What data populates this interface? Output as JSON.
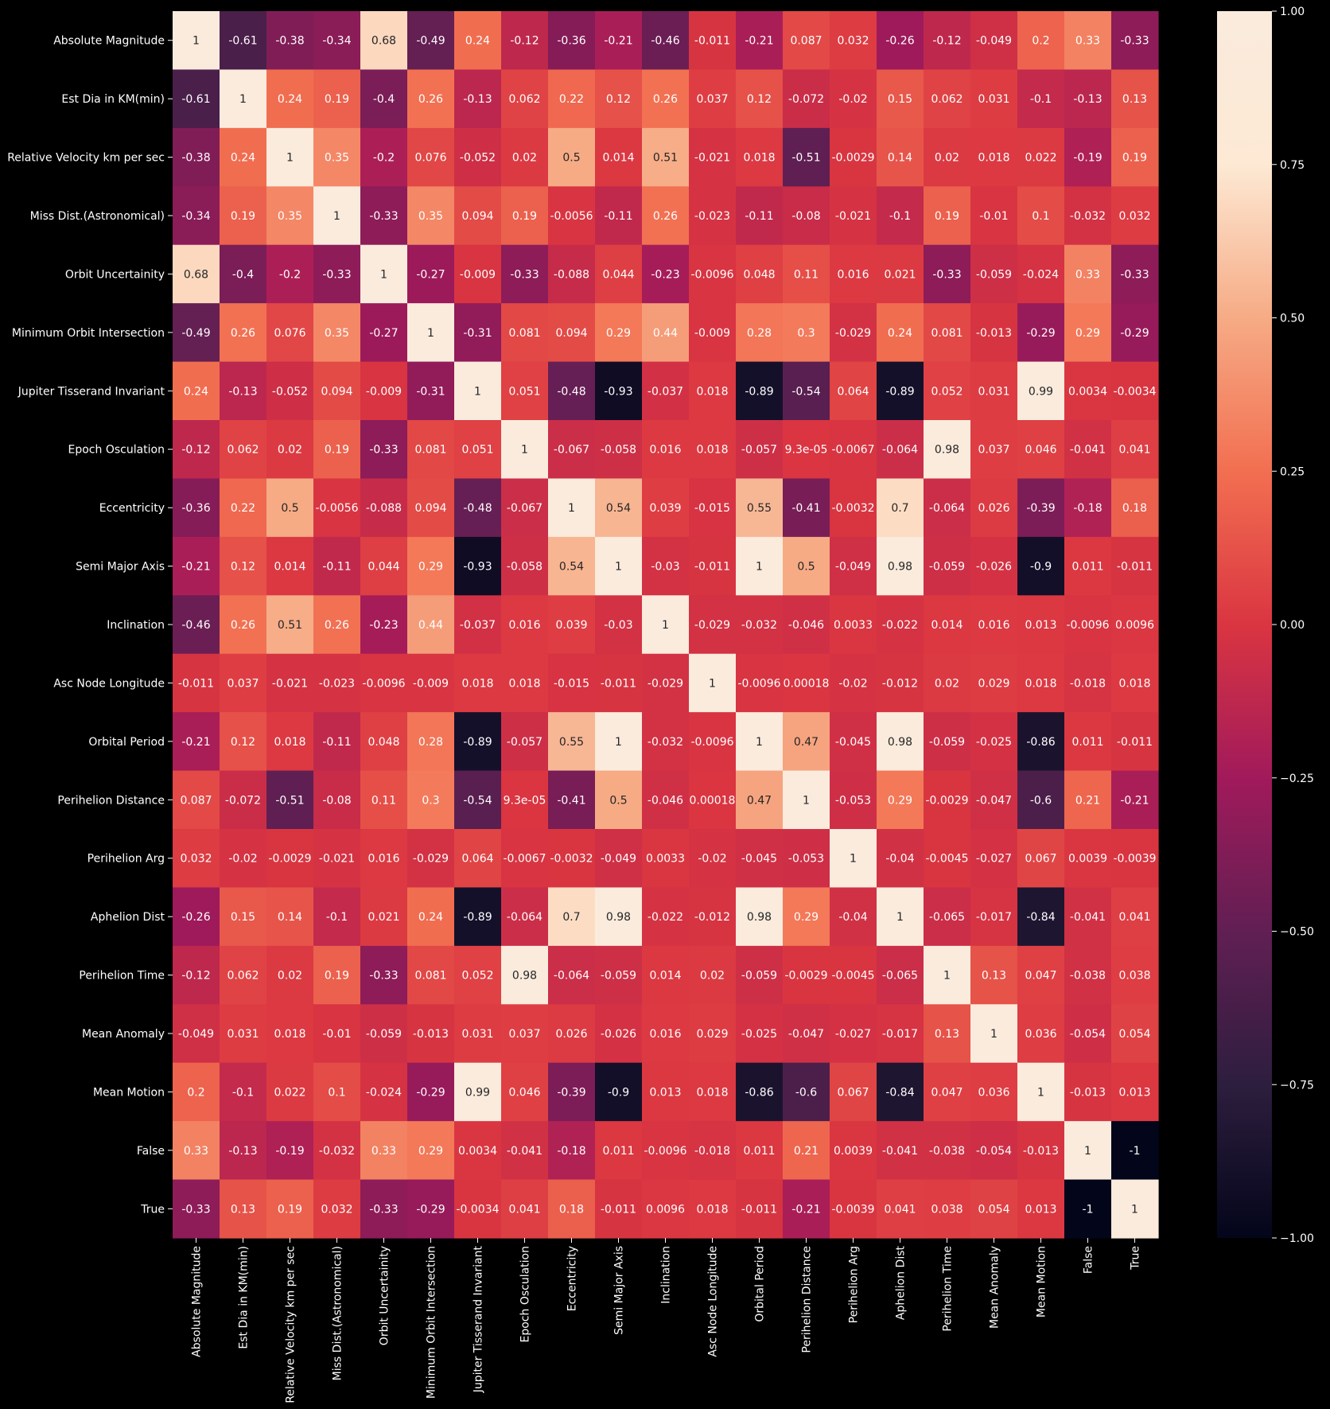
{
  "chart_data": {
    "type": "heatmap",
    "title": "",
    "xlabel": "",
    "ylabel": "",
    "variables": [
      "Absolute Magnitude",
      "Est Dia in KM(min)",
      "Relative Velocity km per sec",
      "Miss Dist.(Astronomical)",
      "Orbit Uncertainity",
      "Minimum Orbit Intersection",
      "Jupiter Tisserand Invariant",
      "Epoch Osculation",
      "Eccentricity",
      "Semi Major Axis",
      "Inclination",
      "Asc Node Longitude",
      "Orbital Period",
      "Perihelion Distance",
      "Perihelion Arg",
      "Aphelion Dist",
      "Perihelion Time",
      "Mean Anomaly",
      "Mean Motion",
      "False",
      "True"
    ],
    "matrix": [
      [
        1,
        -0.61,
        -0.38,
        -0.34,
        0.68,
        -0.49,
        0.24,
        -0.12,
        -0.36,
        -0.21,
        -0.46,
        -0.011,
        -0.21,
        0.087,
        0.032,
        -0.26,
        -0.12,
        -0.049,
        0.2,
        0.33,
        -0.33
      ],
      [
        -0.61,
        1,
        0.24,
        0.19,
        -0.4,
        0.26,
        -0.13,
        0.062,
        0.22,
        0.12,
        0.26,
        0.037,
        0.12,
        -0.072,
        -0.02,
        0.15,
        0.062,
        0.031,
        -0.1,
        -0.13,
        0.13
      ],
      [
        -0.38,
        0.24,
        1,
        0.35,
        -0.2,
        0.076,
        -0.052,
        0.02,
        0.5,
        0.014,
        0.51,
        -0.021,
        0.018,
        -0.51,
        -0.0029,
        0.14,
        0.02,
        0.018,
        0.022,
        -0.19,
        0.19
      ],
      [
        -0.34,
        0.19,
        0.35,
        1,
        -0.33,
        0.35,
        0.094,
        0.19,
        -0.0056,
        -0.11,
        0.26,
        -0.023,
        -0.11,
        -0.08,
        -0.021,
        -0.1,
        0.19,
        -0.01,
        0.1,
        -0.032,
        0.032
      ],
      [
        0.68,
        -0.4,
        -0.2,
        -0.33,
        1,
        -0.27,
        -0.009,
        -0.33,
        -0.088,
        0.044,
        -0.23,
        -0.0096,
        0.048,
        0.11,
        0.016,
        0.021,
        -0.33,
        -0.059,
        -0.024,
        0.33,
        -0.33
      ],
      [
        -0.49,
        0.26,
        0.076,
        0.35,
        -0.27,
        1,
        -0.31,
        0.081,
        0.094,
        0.29,
        0.44,
        -0.009,
        0.28,
        0.3,
        -0.029,
        0.24,
        0.081,
        -0.013,
        -0.29,
        0.29,
        -0.29
      ],
      [
        0.24,
        -0.13,
        -0.052,
        0.094,
        -0.009,
        -0.31,
        1,
        0.051,
        -0.48,
        -0.93,
        -0.037,
        0.018,
        -0.89,
        -0.54,
        0.064,
        -0.89,
        0.052,
        0.031,
        0.99,
        0.0034,
        -0.0034
      ],
      [
        -0.12,
        0.062,
        0.02,
        0.19,
        -0.33,
        0.081,
        0.051,
        1,
        -0.067,
        -0.058,
        0.016,
        0.018,
        -0.057,
        9.3e-05,
        -0.0067,
        -0.064,
        0.98,
        0.037,
        0.046,
        -0.041,
        0.041
      ],
      [
        -0.36,
        0.22,
        0.5,
        -0.0056,
        -0.088,
        0.094,
        -0.48,
        -0.067,
        1,
        0.54,
        0.039,
        -0.015,
        0.55,
        -0.41,
        -0.0032,
        0.7,
        -0.064,
        0.026,
        -0.39,
        -0.18,
        0.18
      ],
      [
        -0.21,
        0.12,
        0.014,
        -0.11,
        0.044,
        0.29,
        -0.93,
        -0.058,
        0.54,
        1,
        -0.03,
        -0.011,
        1,
        0.5,
        -0.049,
        0.98,
        -0.059,
        -0.026,
        -0.9,
        0.011,
        -0.011
      ],
      [
        -0.46,
        0.26,
        0.51,
        0.26,
        -0.23,
        0.44,
        -0.037,
        0.016,
        0.039,
        -0.03,
        1,
        -0.029,
        -0.032,
        -0.046,
        0.0033,
        -0.022,
        0.014,
        0.016,
        0.013,
        -0.0096,
        0.0096
      ],
      [
        -0.011,
        0.037,
        -0.021,
        -0.023,
        -0.0096,
        -0.009,
        0.018,
        0.018,
        -0.015,
        -0.011,
        -0.029,
        1,
        -0.0096,
        0.00018,
        -0.02,
        -0.012,
        0.02,
        0.029,
        0.018,
        -0.018,
        0.018
      ],
      [
        -0.21,
        0.12,
        0.018,
        -0.11,
        0.048,
        0.28,
        -0.89,
        -0.057,
        0.55,
        1,
        -0.032,
        -0.0096,
        1,
        0.47,
        -0.045,
        0.98,
        -0.059,
        -0.025,
        -0.86,
        0.011,
        -0.011
      ],
      [
        0.087,
        -0.072,
        -0.51,
        -0.08,
        0.11,
        0.3,
        -0.54,
        9.3e-05,
        -0.41,
        0.5,
        -0.046,
        0.00018,
        0.47,
        1,
        -0.053,
        0.29,
        -0.0029,
        -0.047,
        -0.6,
        0.21,
        -0.21
      ],
      [
        0.032,
        -0.02,
        -0.0029,
        -0.021,
        0.016,
        -0.029,
        0.064,
        -0.0067,
        -0.0032,
        -0.049,
        0.0033,
        -0.02,
        -0.045,
        -0.053,
        1,
        -0.04,
        -0.0045,
        -0.027,
        0.067,
        0.0039,
        -0.0039
      ],
      [
        -0.26,
        0.15,
        0.14,
        -0.1,
        0.021,
        0.24,
        -0.89,
        -0.064,
        0.7,
        0.98,
        -0.022,
        -0.012,
        0.98,
        0.29,
        -0.04,
        1,
        -0.065,
        -0.017,
        -0.84,
        -0.041,
        0.041
      ],
      [
        -0.12,
        0.062,
        0.02,
        0.19,
        -0.33,
        0.081,
        0.052,
        0.98,
        -0.064,
        -0.059,
        0.014,
        0.02,
        -0.059,
        -0.0029,
        -0.0045,
        -0.065,
        1,
        0.13,
        0.047,
        -0.038,
        0.038
      ],
      [
        -0.049,
        0.031,
        0.018,
        -0.01,
        -0.059,
        -0.013,
        0.031,
        0.037,
        0.026,
        -0.026,
        0.016,
        0.029,
        -0.025,
        -0.047,
        -0.027,
        -0.017,
        0.13,
        1,
        0.036,
        -0.054,
        0.054
      ],
      [
        0.2,
        -0.1,
        0.022,
        0.1,
        -0.024,
        -0.29,
        0.99,
        0.046,
        -0.39,
        -0.9,
        0.013,
        0.018,
        -0.86,
        -0.6,
        0.067,
        -0.84,
        0.047,
        0.036,
        1,
        -0.013,
        0.013
      ],
      [
        0.33,
        -0.13,
        -0.19,
        -0.032,
        0.33,
        0.29,
        0.0034,
        -0.041,
        -0.18,
        0.011,
        -0.0096,
        -0.018,
        0.011,
        0.21,
        0.0039,
        -0.041,
        -0.038,
        -0.054,
        -0.013,
        1,
        -1
      ],
      [
        -0.33,
        0.13,
        0.19,
        0.032,
        -0.33,
        -0.29,
        -0.0034,
        0.041,
        0.18,
        -0.011,
        0.0096,
        0.018,
        -0.011,
        -0.21,
        -0.0039,
        0.041,
        0.038,
        0.054,
        0.013,
        -1,
        1
      ]
    ],
    "value_labels": [
      [
        "1",
        "-0.61",
        "-0.38",
        "-0.34",
        "0.68",
        "-0.49",
        "0.24",
        "-0.12",
        "-0.36",
        "-0.21",
        "-0.46",
        "-0.011",
        "-0.21",
        "0.087",
        "0.032",
        "-0.26",
        "-0.12",
        "-0.049",
        "0.2",
        "0.33",
        "-0.33"
      ],
      [
        "-0.61",
        "1",
        "0.24",
        "0.19",
        "-0.4",
        "0.26",
        "-0.13",
        "0.062",
        "0.22",
        "0.12",
        "0.26",
        "0.037",
        "0.12",
        "-0.072",
        "-0.02",
        "0.15",
        "0.062",
        "0.031",
        "-0.1",
        "-0.13",
        "0.13"
      ],
      [
        "-0.38",
        "0.24",
        "1",
        "0.35",
        "-0.2",
        "0.076",
        "-0.052",
        "0.02",
        "0.5",
        "0.014",
        "0.51",
        "-0.021",
        "0.018",
        "-0.51",
        "-0.0029",
        "0.14",
        "0.02",
        "0.018",
        "0.022",
        "-0.19",
        "0.19"
      ],
      [
        "-0.34",
        "0.19",
        "0.35",
        "1",
        "-0.33",
        "0.35",
        "0.094",
        "0.19",
        "-0.0056",
        "-0.11",
        "0.26",
        "-0.023",
        "-0.11",
        "-0.08",
        "-0.021",
        "-0.1",
        "0.19",
        "-0.01",
        "0.1",
        "-0.032",
        "0.032"
      ],
      [
        "0.68",
        "-0.4",
        "-0.2",
        "-0.33",
        "1",
        "-0.27",
        "-0.009",
        "-0.33",
        "-0.088",
        "0.044",
        "-0.23",
        "-0.0096",
        "0.048",
        "0.11",
        "0.016",
        "0.021",
        "-0.33",
        "-0.059",
        "-0.024",
        "0.33",
        "-0.33"
      ],
      [
        "-0.49",
        "0.26",
        "0.076",
        "0.35",
        "-0.27",
        "1",
        "-0.31",
        "0.081",
        "0.094",
        "0.29",
        "0.44",
        "-0.009",
        "0.28",
        "0.3",
        "-0.029",
        "0.24",
        "0.081",
        "-0.013",
        "-0.29",
        "0.29",
        "-0.29"
      ],
      [
        "0.24",
        "-0.13",
        "-0.052",
        "0.094",
        "-0.009",
        "-0.31",
        "1",
        "0.051",
        "-0.48",
        "-0.93",
        "-0.037",
        "0.018",
        "-0.89",
        "-0.54",
        "0.064",
        "-0.89",
        "0.052",
        "0.031",
        "0.99",
        "0.0034",
        "-0.0034"
      ],
      [
        "-0.12",
        "0.062",
        "0.02",
        "0.19",
        "-0.33",
        "0.081",
        "0.051",
        "1",
        "-0.067",
        "-0.058",
        "0.016",
        "0.018",
        "-0.057",
        "9.3e-05",
        "-0.0067",
        "-0.064",
        "0.98",
        "0.037",
        "0.046",
        "-0.041",
        "0.041"
      ],
      [
        "-0.36",
        "0.22",
        "0.5",
        "-0.0056",
        "-0.088",
        "0.094",
        "-0.48",
        "-0.067",
        "1",
        "0.54",
        "0.039",
        "-0.015",
        "0.55",
        "-0.41",
        "-0.0032",
        "0.7",
        "-0.064",
        "0.026",
        "-0.39",
        "-0.18",
        "0.18"
      ],
      [
        "-0.21",
        "0.12",
        "0.014",
        "-0.11",
        "0.044",
        "0.29",
        "-0.93",
        "-0.058",
        "0.54",
        "1",
        "-0.03",
        "-0.011",
        "1",
        "0.5",
        "-0.049",
        "0.98",
        "-0.059",
        "-0.026",
        "-0.9",
        "0.011",
        "-0.011"
      ],
      [
        "-0.46",
        "0.26",
        "0.51",
        "0.26",
        "-0.23",
        "0.44",
        "-0.037",
        "0.016",
        "0.039",
        "-0.03",
        "1",
        "-0.029",
        "-0.032",
        "-0.046",
        "0.0033",
        "-0.022",
        "0.014",
        "0.016",
        "0.013",
        "-0.0096",
        "0.0096"
      ],
      [
        "-0.011",
        "0.037",
        "-0.021",
        "-0.023",
        "-0.0096",
        "-0.009",
        "0.018",
        "0.018",
        "-0.015",
        "-0.011",
        "-0.029",
        "1",
        "-0.0096",
        "0.00018",
        "-0.02",
        "-0.012",
        "0.02",
        "0.029",
        "0.018",
        "-0.018",
        "0.018"
      ],
      [
        "-0.21",
        "0.12",
        "0.018",
        "-0.11",
        "0.048",
        "0.28",
        "-0.89",
        "-0.057",
        "0.55",
        "1",
        "-0.032",
        "-0.0096",
        "1",
        "0.47",
        "-0.045",
        "0.98",
        "-0.059",
        "-0.025",
        "-0.86",
        "0.011",
        "-0.011"
      ],
      [
        "0.087",
        "-0.072",
        "-0.51",
        "-0.08",
        "0.11",
        "0.3",
        "-0.54",
        "9.3e-05",
        "-0.41",
        "0.5",
        "-0.046",
        "0.00018",
        "0.47",
        "1",
        "-0.053",
        "0.29",
        "-0.0029",
        "-0.047",
        "-0.6",
        "0.21",
        "-0.21"
      ],
      [
        "0.032",
        "-0.02",
        "-0.0029",
        "-0.021",
        "0.016",
        "-0.029",
        "0.064",
        "-0.0067",
        "-0.0032",
        "-0.049",
        "0.0033",
        "-0.02",
        "-0.045",
        "-0.053",
        "1",
        "-0.04",
        "-0.0045",
        "-0.027",
        "0.067",
        "0.0039",
        "-0.0039"
      ],
      [
        "-0.26",
        "0.15",
        "0.14",
        "-0.1",
        "0.021",
        "0.24",
        "-0.89",
        "-0.064",
        "0.7",
        "0.98",
        "-0.022",
        "-0.012",
        "0.98",
        "0.29",
        "-0.04",
        "1",
        "-0.065",
        "-0.017",
        "-0.84",
        "-0.041",
        "0.041"
      ],
      [
        "-0.12",
        "0.062",
        "0.02",
        "0.19",
        "-0.33",
        "0.081",
        "0.052",
        "0.98",
        "-0.064",
        "-0.059",
        "0.014",
        "0.02",
        "-0.059",
        "-0.0029",
        "-0.0045",
        "-0.065",
        "1",
        "0.13",
        "0.047",
        "-0.038",
        "0.038"
      ],
      [
        "-0.049",
        "0.031",
        "0.018",
        "-0.01",
        "-0.059",
        "-0.013",
        "0.031",
        "0.037",
        "0.026",
        "-0.026",
        "0.016",
        "0.029",
        "-0.025",
        "-0.047",
        "-0.027",
        "-0.017",
        "0.13",
        "1",
        "0.036",
        "-0.054",
        "0.054"
      ],
      [
        "0.2",
        "-0.1",
        "0.022",
        "0.1",
        "-0.024",
        "-0.29",
        "0.99",
        "0.046",
        "-0.39",
        "-0.9",
        "0.013",
        "0.018",
        "-0.86",
        "-0.6",
        "0.067",
        "-0.84",
        "0.047",
        "0.036",
        "1",
        "-0.013",
        "0.013"
      ],
      [
        "0.33",
        "-0.13",
        "-0.19",
        "-0.032",
        "0.33",
        "0.29",
        "0.0034",
        "-0.041",
        "-0.18",
        "0.011",
        "-0.0096",
        "-0.018",
        "0.011",
        "0.21",
        "0.0039",
        "-0.041",
        "-0.038",
        "-0.054",
        "-0.013",
        "1",
        "-1"
      ],
      [
        "-0.33",
        "0.13",
        "0.19",
        "0.032",
        "-0.33",
        "-0.29",
        "-0.0034",
        "0.041",
        "0.18",
        "-0.011",
        "0.0096",
        "0.018",
        "-0.011",
        "-0.21",
        "-0.0039",
        "0.041",
        "0.038",
        "0.054",
        "0.013",
        "-1",
        "1"
      ]
    ],
    "vmin": -1,
    "vmax": 1,
    "colormap": "rocket",
    "colormap_stops": [
      "#03051a",
      "#2d1e3e",
      "#611f53",
      "#a11a5b",
      "#da3541",
      "#f26f51",
      "#f6ab85",
      "#fde9d4",
      "#faebdd"
    ],
    "colorbar": {
      "ticks": [
        1,
        0.75,
        0.5,
        0.25,
        0,
        -0.25,
        -0.5,
        -0.75,
        -1
      ],
      "tick_labels": [
        "1.00",
        "0.75",
        "0.50",
        "0.25",
        "0.00",
        "−0.25",
        "−0.50",
        "−0.75",
        "−1.00"
      ]
    },
    "annotations": true,
    "background": "#000000",
    "text_dark": "#262626",
    "text_light": "#ffffff"
  }
}
